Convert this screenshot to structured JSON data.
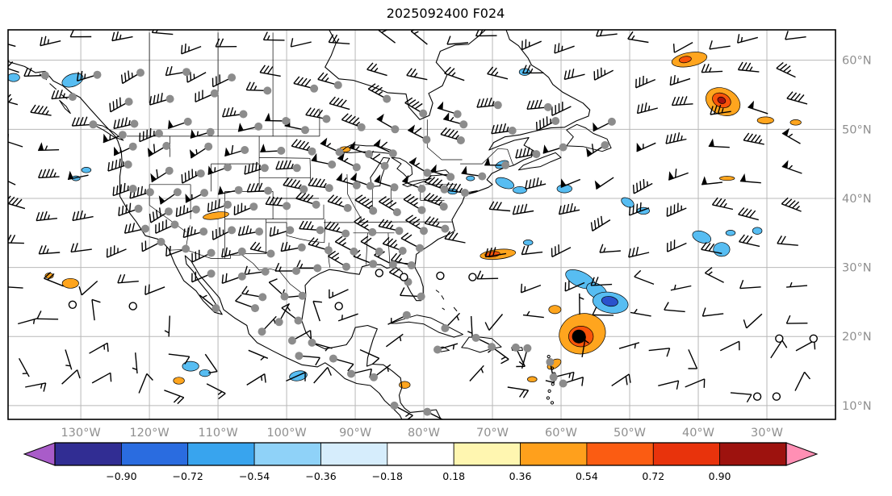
{
  "title": "2025092400 F024",
  "chart_data": {
    "type": "map",
    "title": "2025092400 F024",
    "projection": "plate-carree",
    "extent": {
      "lon_min": -140.6,
      "lon_max": -20.0,
      "lat_min": 8.0,
      "lat_max": 64.4
    },
    "grid": {
      "interval_deg": 10,
      "shown": true
    },
    "styles": {
      "grid_color": "#b8b8b8",
      "tick_label_color": "#8f8f8f",
      "coast_color": "#000000",
      "barb_color": "#000000",
      "station_dot_color": "#8c8c8c"
    },
    "x_axis": {
      "ticks": [
        {
          "deg": -130,
          "label": "130°W"
        },
        {
          "deg": -120,
          "label": "120°W"
        },
        {
          "deg": -110,
          "label": "110°W"
        },
        {
          "deg": -100,
          "label": "100°W"
        },
        {
          "deg": -90,
          "label": "90°W"
        },
        {
          "deg": -80,
          "label": "80°W"
        },
        {
          "deg": -70,
          "label": "70°W"
        },
        {
          "deg": -60,
          "label": "60°W"
        },
        {
          "deg": -50,
          "label": "50°W"
        },
        {
          "deg": -40,
          "label": "40°W"
        },
        {
          "deg": -30,
          "label": "30°W"
        }
      ]
    },
    "y_axis": {
      "ticks": [
        {
          "deg": 60,
          "label": "60°N"
        },
        {
          "deg": 50,
          "label": "50°N"
        },
        {
          "deg": 40,
          "label": "40°N"
        },
        {
          "deg": 30,
          "label": "30°N"
        },
        {
          "deg": 20,
          "label": "20°N"
        },
        {
          "deg": 10,
          "label": "10°N"
        }
      ]
    },
    "colorbar": {
      "orientation": "horizontal",
      "tick_labels": [
        "−0.90",
        "−0.72",
        "−0.54",
        "−0.36",
        "−0.18",
        "0.18",
        "0.36",
        "0.54",
        "0.72",
        "0.90"
      ],
      "band_colors": [
        "#312d93",
        "#2a6ce0",
        "#38a4ee",
        "#8fd2f8",
        "#d6edfc",
        "#ffffff",
        "#fff6b0",
        "#ffa01c",
        "#fb5c12",
        "#e8330c",
        "#9d120e"
      ],
      "under_arrow_color": "#a95cc9",
      "over_arrow_color": "#ff8fb4"
    },
    "features": {
      "patch_colors": {
        "skyblue": "#57bdf2",
        "blue": "#2a52cc",
        "orange": "#ffa51e",
        "orangered": "#f95309",
        "darkred": "#a41210"
      },
      "tropical_cyclone_center": {
        "lon": -57.4,
        "lat": 20.0,
        "symbol": "filled-black-dot"
      },
      "shaded_patches": [
        {
          "lon": -131.2,
          "lat": 57.1,
          "w": 1.6,
          "h": 0.9,
          "rot": -20,
          "c": "skyblue"
        },
        {
          "lon": -139.8,
          "lat": 57.5,
          "w": 0.9,
          "h": 0.6,
          "rot": 0,
          "c": "skyblue"
        },
        {
          "lon": -65.3,
          "lat": 58.3,
          "w": 0.8,
          "h": 0.5,
          "rot": 0,
          "c": "skyblue"
        },
        {
          "lon": -41.3,
          "lat": 60.1,
          "w": 2.6,
          "h": 1.0,
          "rot": -10,
          "c": "orange"
        },
        {
          "lon": -41.9,
          "lat": 60.1,
          "w": 0.9,
          "h": 0.45,
          "rot": -10,
          "c": "orangered"
        },
        {
          "lon": -36.4,
          "lat": 54.0,
          "w": 2.6,
          "h": 1.9,
          "rot": 25,
          "c": "orange"
        },
        {
          "lon": -36.6,
          "lat": 54.2,
          "w": 1.4,
          "h": 1.0,
          "rot": 25,
          "c": "orangered"
        },
        {
          "lon": -36.6,
          "lat": 54.2,
          "w": 0.6,
          "h": 0.45,
          "rot": 25,
          "c": "darkred"
        },
        {
          "lon": -30.2,
          "lat": 51.3,
          "w": 1.2,
          "h": 0.5,
          "rot": 0,
          "c": "orange"
        },
        {
          "lon": -25.8,
          "lat": 51.0,
          "w": 0.8,
          "h": 0.4,
          "rot": 0,
          "c": "orange"
        },
        {
          "lon": -35.8,
          "lat": 42.9,
          "w": 1.1,
          "h": 0.3,
          "rot": 0,
          "c": "orange"
        },
        {
          "lon": -68.2,
          "lat": 42.2,
          "w": 1.4,
          "h": 0.7,
          "rot": 20,
          "c": "skyblue"
        },
        {
          "lon": -66.0,
          "lat": 41.2,
          "w": 1.0,
          "h": 0.5,
          "rot": 0,
          "c": "skyblue"
        },
        {
          "lon": -59.5,
          "lat": 41.4,
          "w": 1.1,
          "h": 0.6,
          "rot": 0,
          "c": "skyblue"
        },
        {
          "lon": -50.3,
          "lat": 39.4,
          "w": 1.0,
          "h": 0.6,
          "rot": 30,
          "c": "skyblue"
        },
        {
          "lon": -48.0,
          "lat": 38.2,
          "w": 0.9,
          "h": 0.5,
          "rot": 0,
          "c": "skyblue"
        },
        {
          "lon": -75.8,
          "lat": 41.0,
          "w": 0.7,
          "h": 0.4,
          "rot": 0,
          "c": "skyblue"
        },
        {
          "lon": -73.2,
          "lat": 42.9,
          "w": 0.6,
          "h": 0.35,
          "rot": 0,
          "c": "skyblue"
        },
        {
          "lon": -68.6,
          "lat": 44.9,
          "w": 1.0,
          "h": 0.5,
          "rot": -20,
          "c": "skyblue"
        },
        {
          "lon": -64.8,
          "lat": 33.6,
          "w": 0.7,
          "h": 0.4,
          "rot": 0,
          "c": "skyblue"
        },
        {
          "lon": -39.5,
          "lat": 34.4,
          "w": 1.4,
          "h": 0.8,
          "rot": 20,
          "c": "skyblue"
        },
        {
          "lon": -36.6,
          "lat": 32.6,
          "w": 1.2,
          "h": 1.0,
          "rot": 0,
          "c": "skyblue"
        },
        {
          "lon": -35.3,
          "lat": 35.0,
          "w": 0.7,
          "h": 0.4,
          "rot": 0,
          "c": "skyblue"
        },
        {
          "lon": -31.4,
          "lat": 35.3,
          "w": 0.7,
          "h": 0.5,
          "rot": 0,
          "c": "skyblue"
        },
        {
          "lon": -69.2,
          "lat": 31.9,
          "w": 2.6,
          "h": 0.7,
          "rot": -6,
          "c": "orange"
        },
        {
          "lon": -70.0,
          "lat": 31.9,
          "w": 1.1,
          "h": 0.4,
          "rot": -6,
          "c": "orangered"
        },
        {
          "lon": -57.2,
          "lat": 28.3,
          "w": 2.3,
          "h": 1.1,
          "rot": 25,
          "c": "skyblue"
        },
        {
          "lon": -54.8,
          "lat": 26.6,
          "w": 1.6,
          "h": 1.0,
          "rot": 30,
          "c": "skyblue"
        },
        {
          "lon": -52.8,
          "lat": 24.9,
          "w": 2.6,
          "h": 1.5,
          "rot": 10,
          "c": "skyblue"
        },
        {
          "lon": -52.9,
          "lat": 25.1,
          "w": 1.2,
          "h": 0.7,
          "rot": 10,
          "c": "blue"
        },
        {
          "lon": -56.9,
          "lat": 20.4,
          "w": 3.4,
          "h": 2.9,
          "rot": -15,
          "c": "orange"
        },
        {
          "lon": -57.1,
          "lat": 20.0,
          "w": 1.8,
          "h": 1.5,
          "rot": 0,
          "c": "orangered"
        },
        {
          "lon": -60.9,
          "lat": 23.9,
          "w": 0.9,
          "h": 0.6,
          "rot": 0,
          "c": "orange"
        },
        {
          "lon": -61.0,
          "lat": 16.0,
          "w": 1.1,
          "h": 0.6,
          "rot": -30,
          "c": "orange"
        },
        {
          "lon": -64.2,
          "lat": 13.8,
          "w": 0.7,
          "h": 0.4,
          "rot": 0,
          "c": "orange"
        },
        {
          "lon": -110.3,
          "lat": 37.5,
          "w": 1.9,
          "h": 0.5,
          "rot": -8,
          "c": "orange"
        },
        {
          "lon": -91.5,
          "lat": 47.1,
          "w": 0.8,
          "h": 0.4,
          "rot": 0,
          "c": "orange"
        },
        {
          "lon": -131.5,
          "lat": 27.7,
          "w": 1.2,
          "h": 0.7,
          "rot": 0,
          "c": "orange"
        },
        {
          "lon": -134.6,
          "lat": 28.8,
          "w": 0.6,
          "h": 0.4,
          "rot": 0,
          "c": "orange"
        },
        {
          "lon": -114.0,
          "lat": 15.7,
          "w": 1.2,
          "h": 0.7,
          "rot": 0,
          "c": "skyblue"
        },
        {
          "lon": -111.9,
          "lat": 14.7,
          "w": 0.8,
          "h": 0.5,
          "rot": 0,
          "c": "skyblue"
        },
        {
          "lon": -115.7,
          "lat": 13.6,
          "w": 0.8,
          "h": 0.5,
          "rot": 0,
          "c": "orange"
        },
        {
          "lon": -98.3,
          "lat": 14.3,
          "w": 1.3,
          "h": 0.7,
          "rot": -10,
          "c": "skyblue"
        },
        {
          "lon": -82.8,
          "lat": 13.0,
          "w": 0.8,
          "h": 0.5,
          "rot": 0,
          "c": "orange"
        },
        {
          "lon": -129.2,
          "lat": 44.1,
          "w": 0.7,
          "h": 0.4,
          "rot": 0,
          "c": "skyblue"
        },
        {
          "lon": -130.7,
          "lat": 42.9,
          "w": 0.6,
          "h": 0.35,
          "rot": 0,
          "c": "skyblue"
        }
      ],
      "station_dots": [
        [
          -135.2,
          57.8
        ],
        [
          -131.2,
          54.7
        ],
        [
          -127.6,
          57.9
        ],
        [
          -121.3,
          58.2
        ],
        [
          -114.6,
          58.3
        ],
        [
          -108,
          57.5
        ],
        [
          -123,
          54
        ],
        [
          -117,
          54.4
        ],
        [
          -110.5,
          55.2
        ],
        [
          -102.8,
          55.6
        ],
        [
          -96,
          55.9
        ],
        [
          -92.5,
          56.4
        ],
        [
          -85.4,
          54.4
        ],
        [
          -80.1,
          52.3
        ],
        [
          -75.1,
          52.2
        ],
        [
          -69.2,
          53.5
        ],
        [
          -61.9,
          53.2
        ],
        [
          -128.2,
          50.7
        ],
        [
          -122.2,
          50.8
        ],
        [
          -114.4,
          51.1
        ],
        [
          -106.3,
          52.2
        ],
        [
          -100.1,
          51.2
        ],
        [
          -94.2,
          51.5
        ],
        [
          -89.1,
          50.3
        ],
        [
          -84.2,
          50
        ],
        [
          -79.6,
          48.5
        ],
        [
          -74.6,
          48.4
        ],
        [
          -74.2,
          50.7
        ],
        [
          -67.1,
          49.8
        ],
        [
          -60.8,
          51.2
        ],
        [
          -52.6,
          51.1
        ],
        [
          -53.6,
          47.7
        ],
        [
          -59.7,
          47.4
        ],
        [
          -63.6,
          46.4
        ],
        [
          -123.9,
          49.2
        ],
        [
          -118.6,
          49.4
        ],
        [
          -111.1,
          49.6
        ],
        [
          -104.1,
          50.4
        ],
        [
          -97.3,
          49.9
        ],
        [
          -122.4,
          47.5
        ],
        [
          -117.5,
          47.6
        ],
        [
          -111.4,
          47.5
        ],
        [
          -106.1,
          47
        ],
        [
          -100.8,
          46.9
        ],
        [
          -96.3,
          46.8
        ],
        [
          -92.3,
          46.7
        ],
        [
          -88,
          46.4
        ],
        [
          -84.5,
          46.5
        ],
        [
          -123.1,
          44.9
        ],
        [
          -117.1,
          44
        ],
        [
          -112.5,
          43.6
        ],
        [
          -108.6,
          44.5
        ],
        [
          -103.2,
          44.4
        ],
        [
          -98.5,
          44.4
        ],
        [
          -93.4,
          44.9
        ],
        [
          -89.8,
          44.5
        ],
        [
          -85.7,
          44.7
        ],
        [
          -79.5,
          43.7
        ],
        [
          -76.1,
          43.1
        ],
        [
          -71.5,
          43.2
        ],
        [
          -68.1,
          44.8
        ],
        [
          -122.4,
          41.4
        ],
        [
          -119.9,
          40.9
        ],
        [
          -115.9,
          40.9
        ],
        [
          -112,
          40.8
        ],
        [
          -107,
          41.2
        ],
        [
          -102.7,
          41.1
        ],
        [
          -97.5,
          41.3
        ],
        [
          -93.8,
          41.5
        ],
        [
          -89.8,
          41.9
        ],
        [
          -87.8,
          41.8
        ],
        [
          -84.3,
          41.6
        ],
        [
          -80.3,
          41.4
        ],
        [
          -77,
          41.3
        ],
        [
          -74,
          40.8
        ],
        [
          -121.6,
          38.5
        ],
        [
          -117.2,
          38.1
        ],
        [
          -113.2,
          38.4
        ],
        [
          -108.6,
          39.1
        ],
        [
          -104.8,
          38.8
        ],
        [
          -100,
          38.9
        ],
        [
          -95.7,
          39.1
        ],
        [
          -91.1,
          38.6
        ],
        [
          -87.4,
          38.2
        ],
        [
          -83.9,
          38
        ],
        [
          -80.3,
          38.3
        ],
        [
          -77.1,
          38.8
        ],
        [
          -120.6,
          35.6
        ],
        [
          -116.3,
          36.2
        ],
        [
          -112.1,
          35.2
        ],
        [
          -108,
          35.4
        ],
        [
          -104,
          35.2
        ],
        [
          -99.5,
          35.4
        ],
        [
          -95.1,
          35.4
        ],
        [
          -91.4,
          34.9
        ],
        [
          -87.5,
          35.1
        ],
        [
          -83.6,
          35.3
        ],
        [
          -80,
          35.3
        ],
        [
          -76.9,
          35.6
        ],
        [
          -118.3,
          33.7
        ],
        [
          -114.7,
          32.7
        ],
        [
          -111,
          32.1
        ],
        [
          -106.5,
          32.3
        ],
        [
          -102.3,
          32
        ],
        [
          -97.8,
          32.9
        ],
        [
          -93.9,
          32.5
        ],
        [
          -90.2,
          32.3
        ],
        [
          -86.5,
          32.3
        ],
        [
          -83.1,
          32.4
        ],
        [
          -80.6,
          32.8
        ],
        [
          -103.1,
          29.4
        ],
        [
          -98.6,
          29.5
        ],
        [
          -95.5,
          29.9
        ],
        [
          -91.3,
          30.1
        ],
        [
          -87.4,
          30.5
        ],
        [
          -84.5,
          30.4
        ],
        [
          -81.8,
          30.3
        ],
        [
          -82.3,
          27.9
        ],
        [
          -80.4,
          25.8
        ],
        [
          -111,
          29.1
        ],
        [
          -106.5,
          28.7
        ],
        [
          -103.5,
          25.7
        ],
        [
          -100.3,
          25.8
        ],
        [
          -97.7,
          25.9
        ],
        [
          -110.3,
          24.1
        ],
        [
          -104.6,
          24.1
        ],
        [
          -101.1,
          22.1
        ],
        [
          -98.3,
          22.3
        ],
        [
          -103.6,
          20.7
        ],
        [
          -99.2,
          19.4
        ],
        [
          -96.3,
          19.1
        ],
        [
          -98.2,
          17.2
        ],
        [
          -93.2,
          16.8
        ],
        [
          -90.6,
          14.6
        ],
        [
          -87.3,
          14.1
        ],
        [
          -84.3,
          10
        ],
        [
          -79.5,
          9.1
        ],
        [
          -82.5,
          23.1
        ],
        [
          -76.9,
          21.2
        ],
        [
          -78,
          18.1
        ],
        [
          -72.4,
          19.8
        ],
        [
          -70.1,
          18.5
        ],
        [
          -66.6,
          18.4
        ],
        [
          -64.9,
          18.3
        ],
        [
          -61.6,
          16.3
        ],
        [
          -61.1,
          14.1
        ],
        [
          -59.7,
          13.2
        ]
      ],
      "calm_open_circles": [
        [
          -86.5,
          29.2
        ],
        [
          -82.9,
          28.6
        ],
        [
          -77.6,
          28.8
        ],
        [
          -72.9,
          28.6
        ],
        [
          -122.4,
          24.4
        ],
        [
          -131.2,
          24.6
        ],
        [
          -92.4,
          24.4
        ],
        [
          -28.2,
          19.7
        ],
        [
          -23.2,
          19.7
        ],
        [
          -31.4,
          11.3
        ],
        [
          -28.6,
          11.3
        ]
      ],
      "wind_barbs": {
        "color": "#000000",
        "note": "black wind barbs cover the full domain"
      }
    }
  }
}
